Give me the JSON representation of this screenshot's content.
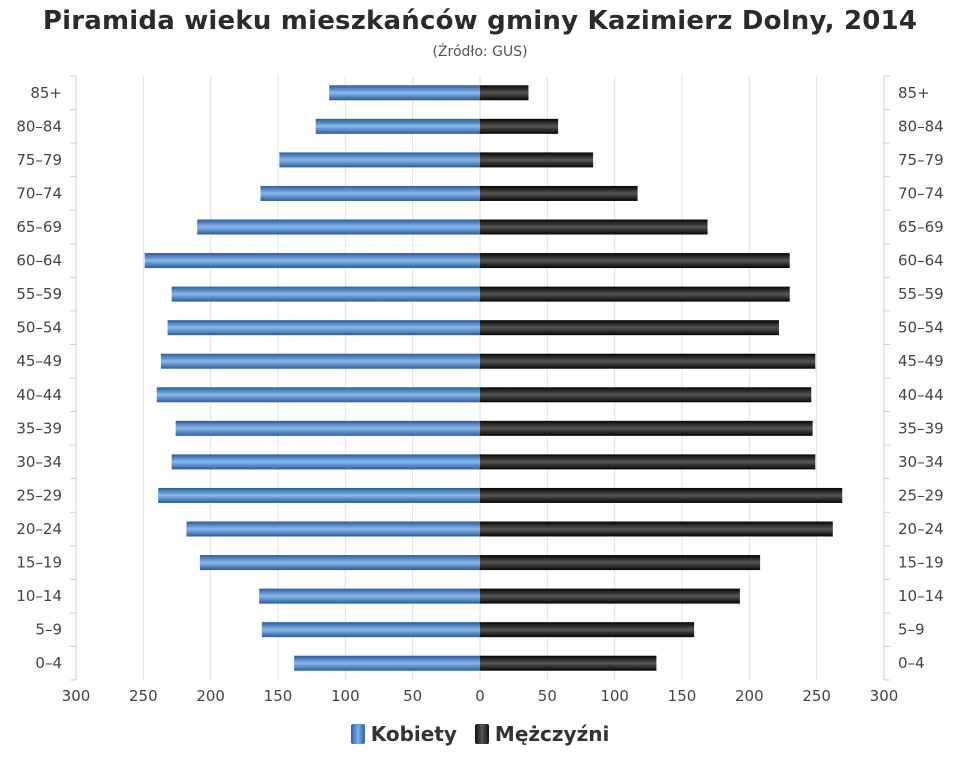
{
  "chart_data": {
    "type": "bar",
    "orientation": "horizontal-population-pyramid",
    "title": "Piramida wieku mieszkańców gminy Kazimierz Dolny, 2014",
    "subtitle": "(Źródło: GUS)",
    "categories": [
      "85+",
      "80–84",
      "75–79",
      "70–74",
      "65–69",
      "60–64",
      "55–59",
      "50–54",
      "45–49",
      "40–44",
      "35–39",
      "30–34",
      "25–29",
      "20–24",
      "15–19",
      "10–14",
      "5–9",
      "0–4"
    ],
    "series": [
      {
        "name": "Kobiety",
        "color": "#3a74bf",
        "values": [
          112,
          122,
          149,
          163,
          210,
          249,
          229,
          232,
          237,
          240,
          226,
          229,
          239,
          218,
          208,
          164,
          162,
          138
        ]
      },
      {
        "name": "Mężczyźni",
        "color": "#1a1a1a",
        "values": [
          36,
          58,
          84,
          117,
          169,
          230,
          230,
          222,
          249,
          246,
          247,
          249,
          269,
          262,
          208,
          193,
          159,
          131
        ]
      }
    ],
    "xlim": [
      -300,
      300
    ],
    "x_ticks": [
      "300",
      "250",
      "200",
      "150",
      "100",
      "50",
      "0",
      "50",
      "100",
      "150",
      "200",
      "250",
      "300"
    ],
    "grid": true,
    "legend_position": "bottom-center"
  }
}
